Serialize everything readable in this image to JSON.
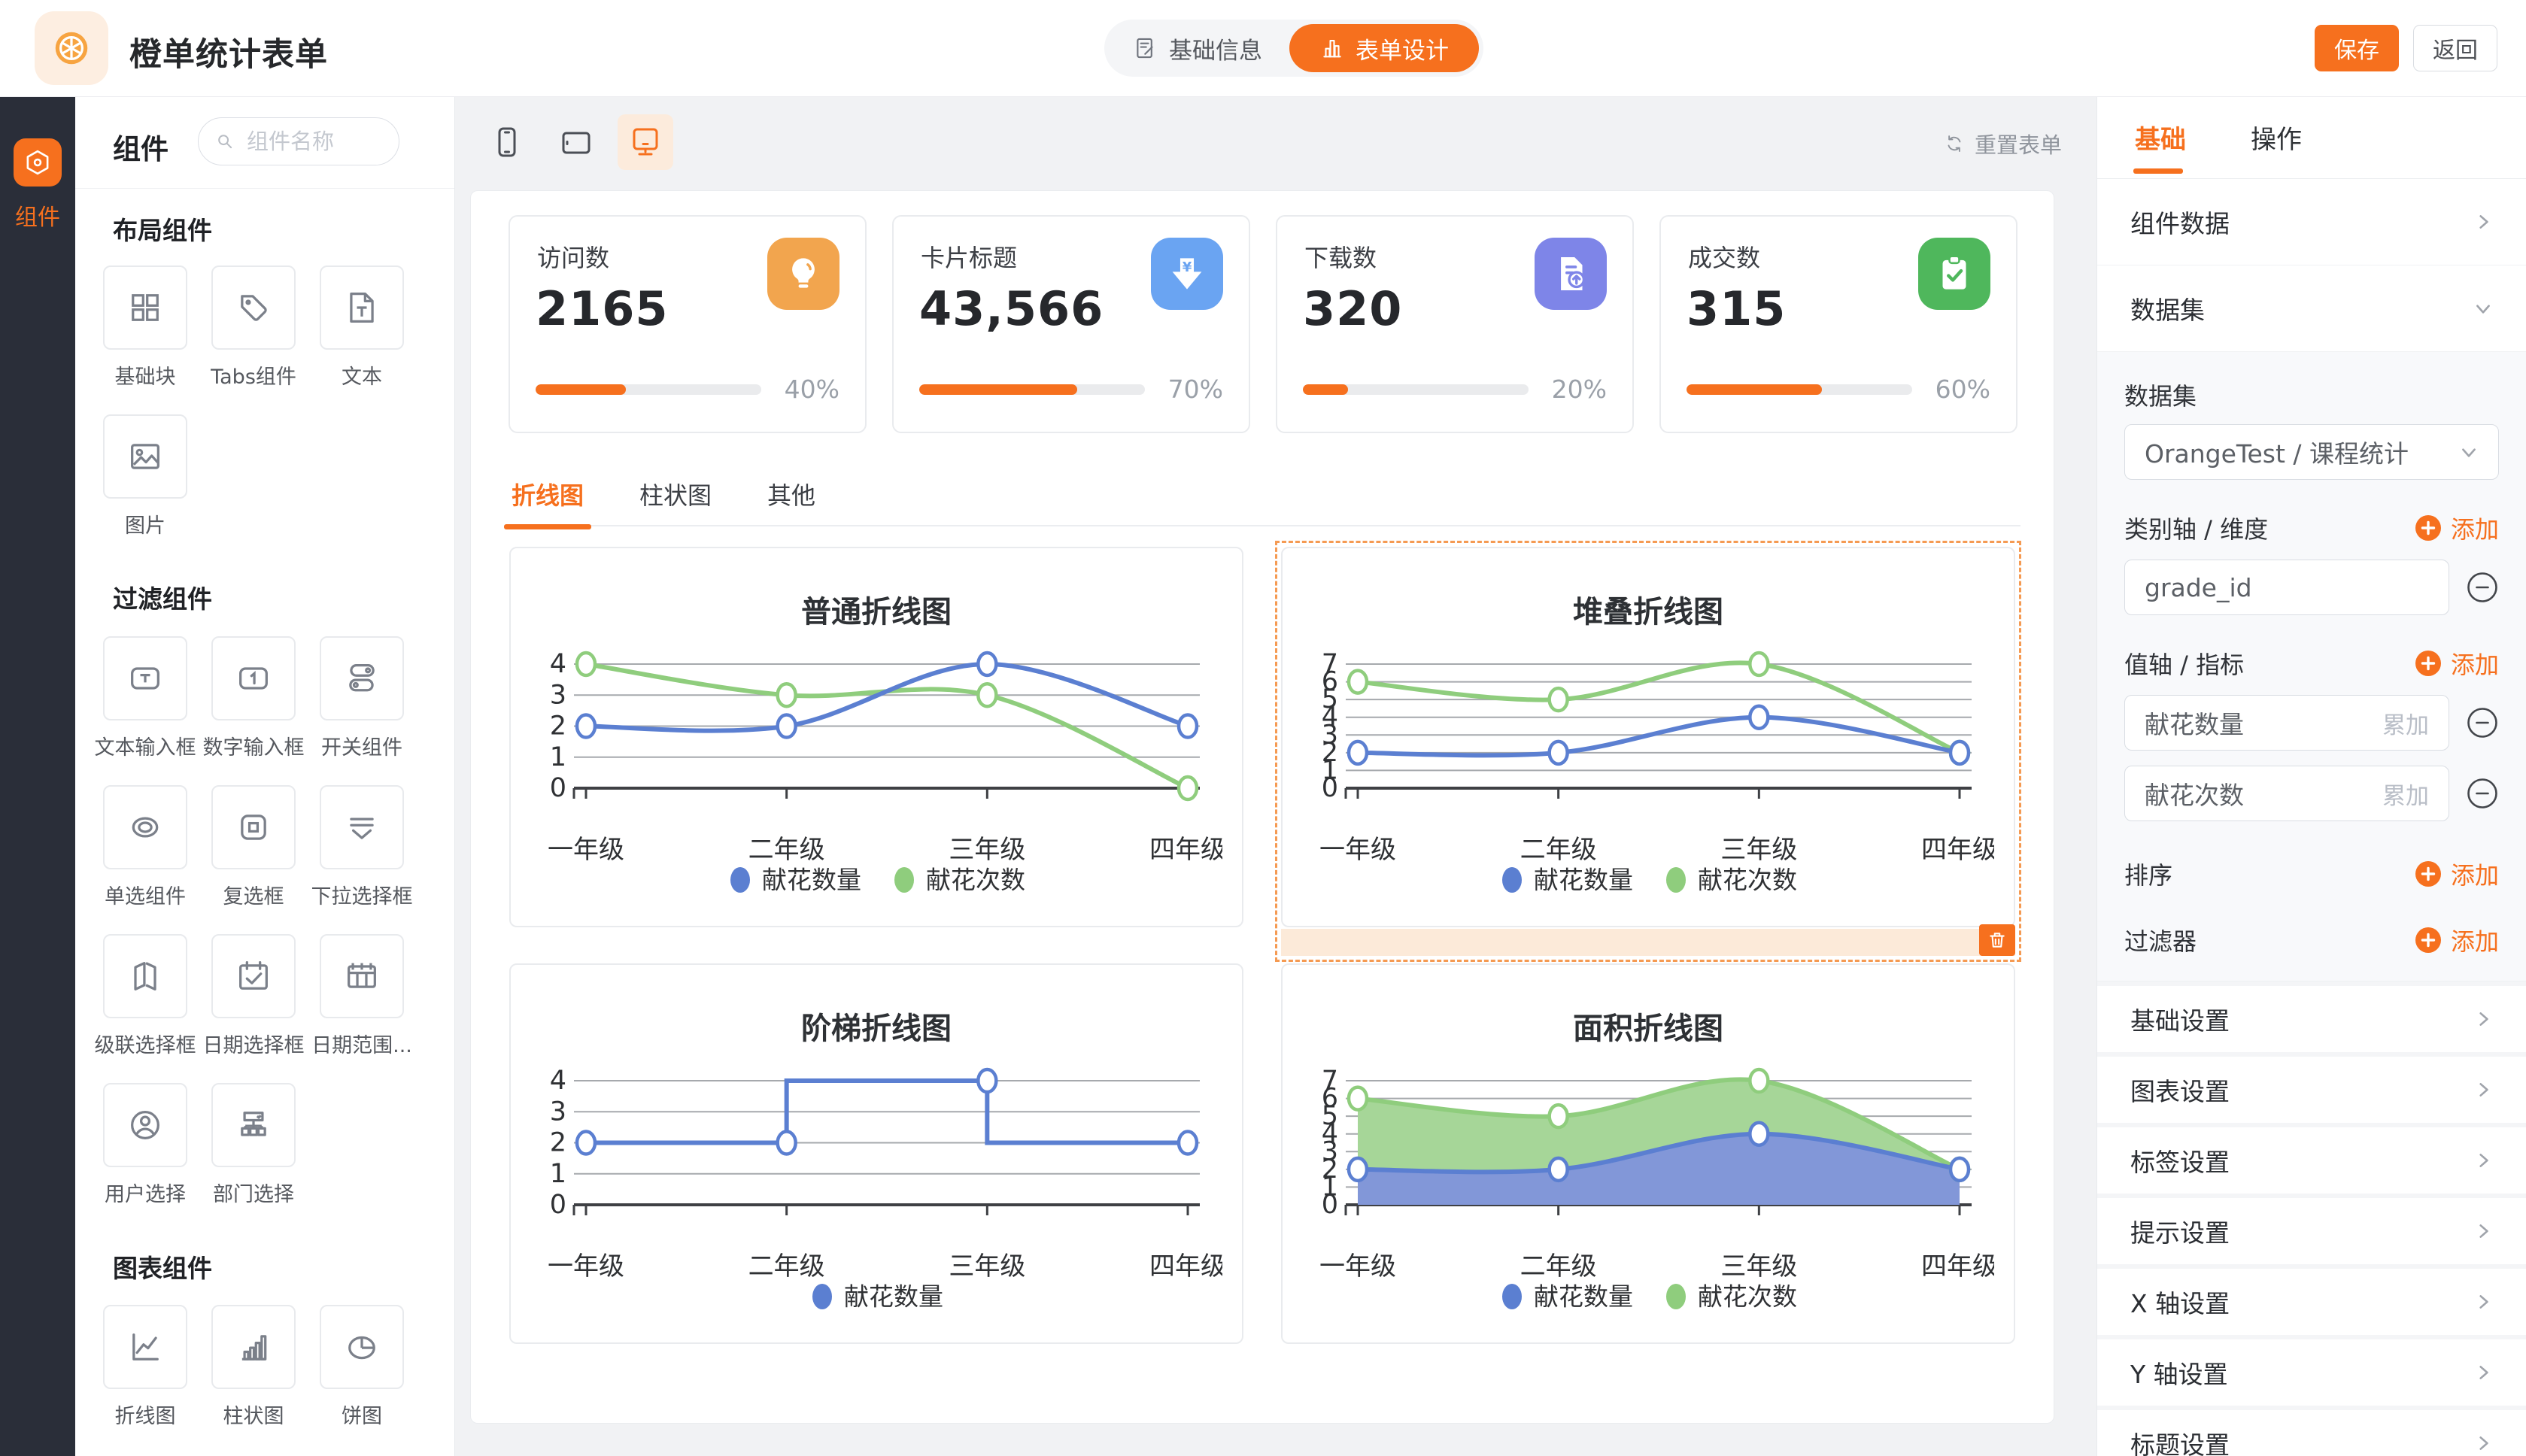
{
  "header": {
    "title": "橙单统计表单",
    "logo_icon": "orange-slice-icon",
    "mode_tabs": [
      {
        "label": "基础信息",
        "icon": "form-icon",
        "active": false
      },
      {
        "label": "表单设计",
        "icon": "bar-chart-mini-icon",
        "active": true
      }
    ],
    "save_label": "保存",
    "back_label": "返回"
  },
  "rail": {
    "items": [
      {
        "label": "组件",
        "icon": "hexagon-icon",
        "active": true
      }
    ]
  },
  "components_panel": {
    "title": "组件",
    "search_placeholder": "组件名称",
    "sections": [
      {
        "title": "布局组件",
        "items": [
          {
            "label": "基础块",
            "icon": "blocks-icon"
          },
          {
            "label": "Tabs组件",
            "icon": "tag-icon"
          },
          {
            "label": "文本",
            "icon": "text-file-icon"
          },
          {
            "label": "图片",
            "icon": "image-icon"
          }
        ]
      },
      {
        "title": "过滤组件",
        "items": [
          {
            "label": "文本输入框",
            "icon": "text-input-icon"
          },
          {
            "label": "数字输入框",
            "icon": "number-input-icon"
          },
          {
            "label": "开关组件",
            "icon": "switch-icon"
          },
          {
            "label": "单选组件",
            "icon": "radio-icon"
          },
          {
            "label": "复选框",
            "icon": "checkbox-icon"
          },
          {
            "label": "下拉选择框",
            "icon": "select-icon"
          },
          {
            "label": "级联选择框",
            "icon": "cascade-icon"
          },
          {
            "label": "日期选择框",
            "icon": "date-icon"
          },
          {
            "label": "日期范围...",
            "icon": "date-range-icon"
          },
          {
            "label": "用户选择",
            "icon": "user-icon"
          },
          {
            "label": "部门选择",
            "icon": "dept-icon"
          }
        ]
      },
      {
        "title": "图表组件",
        "items": [
          {
            "label": "折线图",
            "icon": "line-chart-icon"
          },
          {
            "label": "柱状图",
            "icon": "bar-chart-icon"
          },
          {
            "label": "饼图",
            "icon": "pie-chart-icon"
          }
        ]
      }
    ]
  },
  "canvas": {
    "devices": [
      {
        "name": "phone",
        "icon": "phone-icon",
        "active": false
      },
      {
        "name": "tablet",
        "icon": "tablet-icon",
        "active": false
      },
      {
        "name": "desktop",
        "icon": "desktop-icon",
        "active": true
      }
    ],
    "reset_label": "重置表单",
    "progress_color": "#f6701e",
    "stat_cards": [
      {
        "title": "访问数",
        "value": "2165",
        "icon": "bulb-icon",
        "icon_bg": "#f2a54e",
        "progress": 40,
        "percent_label": "40%"
      },
      {
        "title": "卡片标题",
        "value": "43,566",
        "icon": "money-arrow-icon",
        "icon_bg": "#6aa4f2",
        "progress": 70,
        "percent_label": "70%"
      },
      {
        "title": "下载数",
        "value": "320",
        "icon": "file-upload-icon",
        "icon_bg": "#7e85e8",
        "progress": 20,
        "percent_label": "20%"
      },
      {
        "title": "成交数",
        "value": "315",
        "icon": "clipboard-check-icon",
        "icon_bg": "#4fb75c",
        "progress": 60,
        "percent_label": "60%"
      }
    ],
    "chart_tabs": [
      {
        "label": "折线图",
        "active": true
      },
      {
        "label": "柱状图",
        "active": false
      },
      {
        "label": "其他",
        "active": false
      }
    ]
  },
  "chart_data": [
    {
      "type": "line",
      "title": "普通折线图",
      "categories": [
        "一年级",
        "二年级",
        "三年级",
        "四年级"
      ],
      "series": [
        {
          "name": "献花数量",
          "color": "#5b7fd1",
          "values": [
            2,
            2,
            4,
            2
          ]
        },
        {
          "name": "献花次数",
          "color": "#8fcd7d",
          "values": [
            4,
            3,
            3,
            0
          ]
        }
      ],
      "smooth": true,
      "stacked": false,
      "area": false,
      "step": false,
      "ylim": [
        0,
        4
      ],
      "grid": true,
      "legend_position": "bottom",
      "selected": false
    },
    {
      "type": "line",
      "title": "堆叠折线图",
      "categories": [
        "一年级",
        "二年级",
        "三年级",
        "四年级"
      ],
      "series": [
        {
          "name": "献花数量",
          "color": "#5b7fd1",
          "values": [
            2,
            2,
            4,
            2
          ]
        },
        {
          "name": "献花次数",
          "color": "#8fcd7d",
          "values": [
            4,
            3,
            3,
            0
          ]
        }
      ],
      "smooth": true,
      "stacked": true,
      "area": false,
      "step": false,
      "ylim": [
        0,
        7
      ],
      "grid": true,
      "legend_position": "bottom",
      "selected": true
    },
    {
      "type": "line",
      "title": "阶梯折线图",
      "categories": [
        "一年级",
        "二年级",
        "三年级",
        "四年级"
      ],
      "series": [
        {
          "name": "献花数量",
          "color": "#5b7fd1",
          "values": [
            2,
            2,
            4,
            2
          ]
        }
      ],
      "smooth": false,
      "stacked": false,
      "area": false,
      "step": true,
      "ylim": [
        0,
        4
      ],
      "grid": true,
      "legend_position": "bottom",
      "selected": false
    },
    {
      "type": "area",
      "title": "面积折线图",
      "categories": [
        "一年级",
        "二年级",
        "三年级",
        "四年级"
      ],
      "series": [
        {
          "name": "献花数量",
          "color": "#5b7fd1",
          "fill": "#8297d8",
          "values": [
            2,
            2,
            4,
            2
          ]
        },
        {
          "name": "献花次数",
          "color": "#8fcd7d",
          "fill": "#a6d698",
          "values": [
            4,
            3,
            3,
            0
          ]
        }
      ],
      "smooth": true,
      "stacked": true,
      "area": true,
      "step": false,
      "ylim": [
        0,
        7
      ],
      "grid": true,
      "legend_position": "bottom",
      "selected": false
    }
  ],
  "inspector": {
    "tabs": [
      {
        "label": "基础",
        "active": true
      },
      {
        "label": "操作",
        "active": false
      }
    ],
    "component_data_label": "组件数据",
    "dataset_section_label": "数据集",
    "dataset_field_label": "数据集",
    "dataset_value": "OrangeTest / 课程统计",
    "category_axis_label": "类别轴 / 维度",
    "add_label": "添加",
    "category_fields": [
      "grade_id"
    ],
    "value_axis_label": "值轴 / 指标",
    "value_fields": [
      {
        "name": "献花数量",
        "agg": "累加"
      },
      {
        "name": "献花次数",
        "agg": "累加"
      }
    ],
    "sort_label": "排序",
    "filter_label": "过滤器",
    "settings": [
      "基础设置",
      "图表设置",
      "标签设置",
      "提示设置",
      "X 轴设置",
      "Y 轴设置",
      "标题设置"
    ]
  },
  "colors": {
    "accent": "#f6701e",
    "accent_light_bg": "#fdeee1",
    "rail_bg": "#2a2e39",
    "selection_dash": "#f59a52",
    "series_blue": "#5b7fd1",
    "series_green": "#8fcd7d"
  }
}
